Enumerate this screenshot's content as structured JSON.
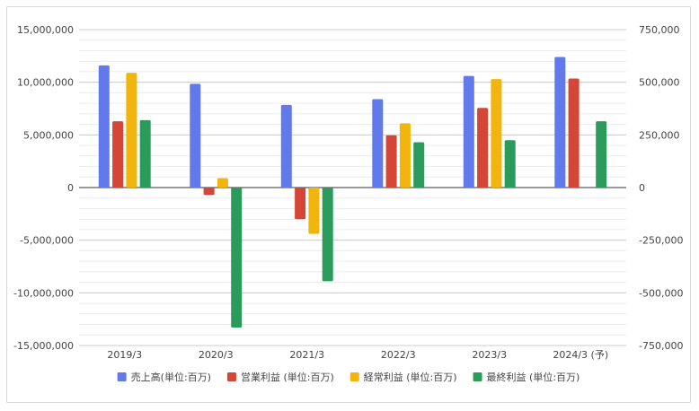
{
  "chart_data": {
    "type": "bar",
    "categories": [
      "2019/3",
      "2020/3",
      "2021/3",
      "2022/3",
      "2023/3",
      "2024/3 (予)"
    ],
    "series": [
      {
        "name": "売上高(単位:百万)",
        "axis": "left",
        "color": "#6279ec",
        "values": [
          11600000,
          9850000,
          7850000,
          8400000,
          10600000,
          12400000
        ]
      },
      {
        "name": "営業利益 (単位:百万)",
        "axis": "right",
        "color": "#d44638",
        "values": [
          315000,
          -35000,
          -150000,
          248000,
          378000,
          518000
        ]
      },
      {
        "name": "経常利益 (単位:百万)",
        "axis": "right",
        "color": "#f1b50d",
        "values": [
          545000,
          45000,
          -220000,
          305000,
          515000,
          null
        ]
      },
      {
        "name": "最終利益 (単位:百万)",
        "axis": "right",
        "color": "#2a9b5a",
        "values": [
          320000,
          -665000,
          -445000,
          215000,
          225000,
          315000
        ]
      }
    ],
    "left_axis": {
      "range": [
        -15000000,
        15000000
      ],
      "ticks": [
        "15,000,000",
        "10,000,000",
        "5,000,000",
        "0",
        "-5,000,000",
        "-10,000,000",
        "-15,000,000"
      ]
    },
    "right_axis": {
      "range": [
        -750000,
        750000
      ],
      "ticks": [
        "750,000",
        "500,000",
        "250,000",
        "0",
        "-250,000",
        "-500,000",
        "-750,000"
      ]
    },
    "grid": true,
    "legend_position": "bottom"
  }
}
